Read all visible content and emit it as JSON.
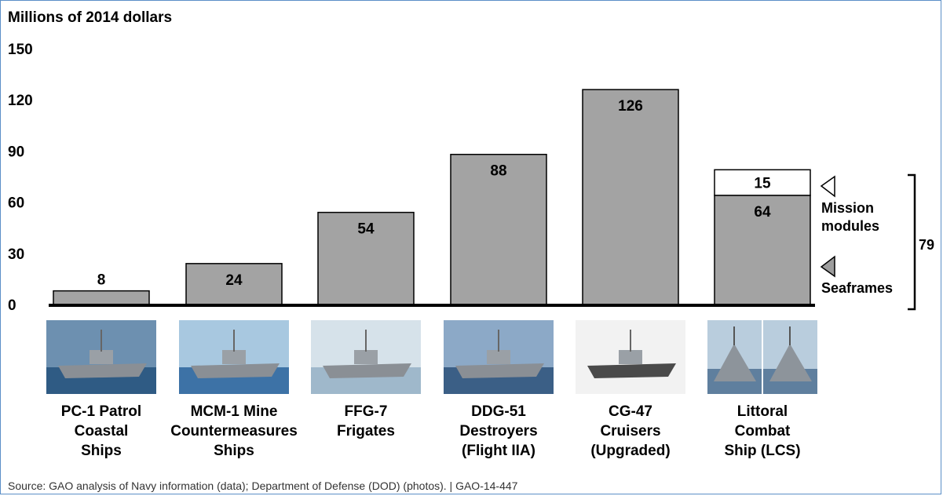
{
  "chart_data": {
    "type": "bar",
    "ylabel": "Millions of 2014 dollars",
    "yticks": [
      0,
      30,
      60,
      90,
      120,
      150
    ],
    "ylim": [
      0,
      150
    ],
    "categories": [
      [
        "PC-1 Patrol",
        "Coastal",
        "Ships"
      ],
      [
        "MCM-1 Mine",
        "Countermeasures",
        "Ships"
      ],
      [
        "FFG-7",
        "Frigates"
      ],
      [
        "DDG-51",
        "Destroyers",
        "(Flight IIA)"
      ],
      [
        "CG-47",
        "Cruisers",
        "(Upgraded)"
      ],
      [
        "Littoral",
        "Combat",
        "Ship (LCS)"
      ]
    ],
    "series": [
      {
        "name": "Seaframes",
        "values": [
          8,
          24,
          54,
          88,
          126,
          64
        ],
        "color": "#a3a3a3"
      },
      {
        "name": "Mission modules",
        "values": [
          0,
          0,
          0,
          0,
          0,
          15
        ],
        "color": "#ffffff"
      }
    ],
    "lcs_total": 79,
    "legend": {
      "mission_modules": "Mission modules",
      "seaframes": "Seaframes"
    },
    "photo_icons": [
      "patrol-ship-photo",
      "mine-countermeasures-ship-photo",
      "frigate-photo",
      "destroyer-photo",
      "cruiser-photo",
      "littoral-combat-ship-photos"
    ]
  },
  "source": "Source: GAO analysis of Navy information (data); Department of Defense (DOD) (photos).  |  GAO-14-447"
}
